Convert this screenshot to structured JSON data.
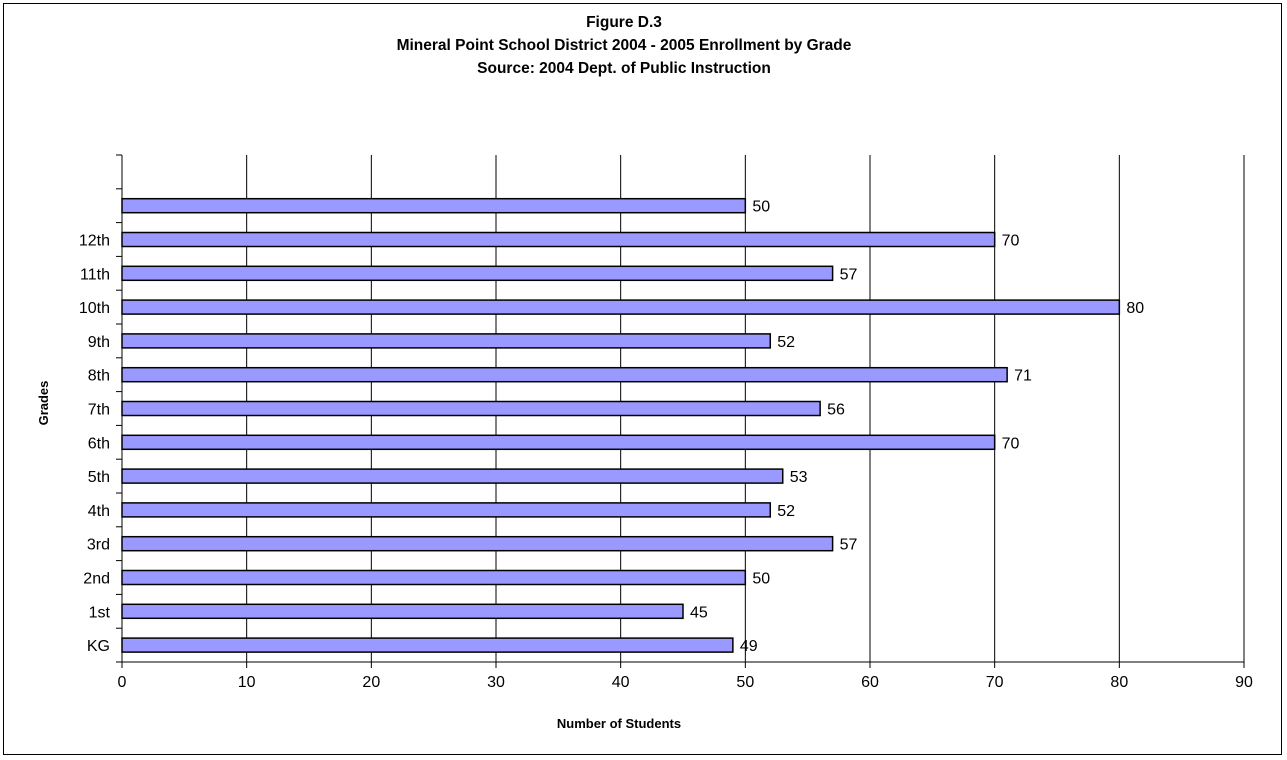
{
  "chart_data": {
    "type": "bar",
    "orientation": "horizontal",
    "title": [
      "Figure D.3",
      "Mineral Point School District 2004 - 2005 Enrollment by Grade",
      "Source:  2004 Dept. of Public Instruction"
    ],
    "xlabel": "Number of Students",
    "ylabel": "Grades",
    "xlim": [
      0,
      90
    ],
    "xticks": [
      0,
      10,
      20,
      30,
      40,
      50,
      60,
      70,
      80,
      90
    ],
    "grid": true,
    "bar_color": "#9999FF",
    "categories": [
      "KG",
      "1st",
      "2nd",
      "3rd",
      "4th",
      "5th",
      "6th",
      "7th",
      "8th",
      "9th",
      "10th",
      "11th",
      "12th",
      ""
    ],
    "values": [
      49,
      45,
      50,
      57,
      52,
      53,
      70,
      56,
      71,
      52,
      80,
      57,
      70,
      50
    ]
  }
}
